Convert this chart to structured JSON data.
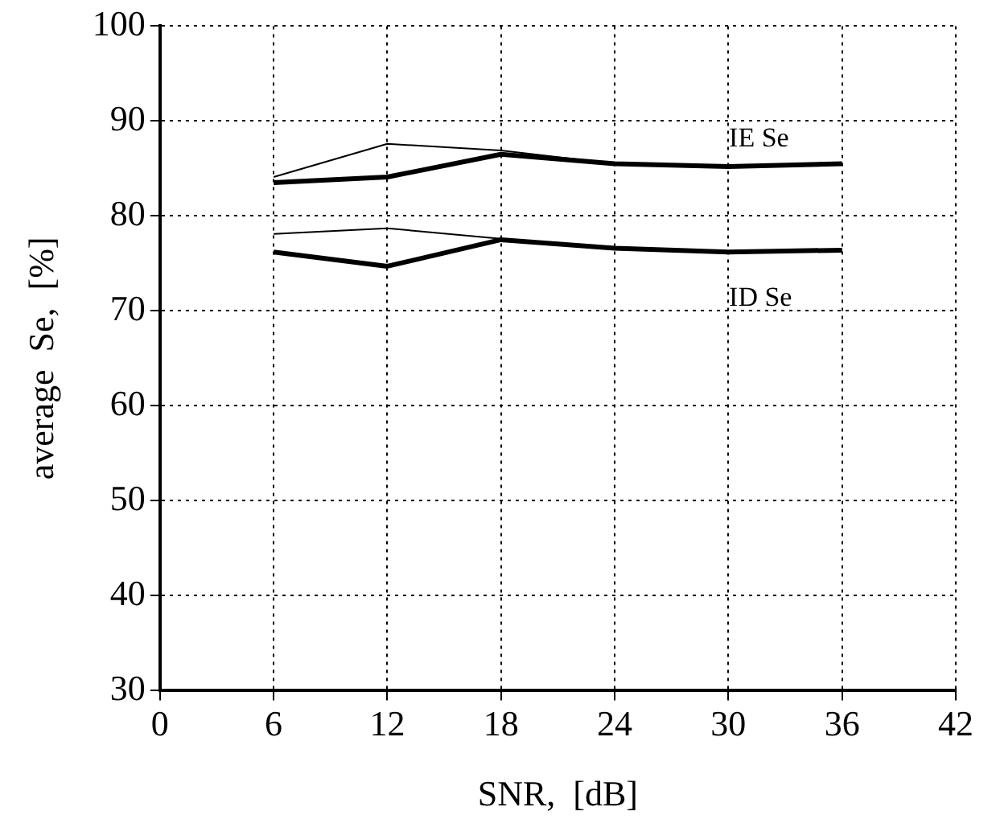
{
  "chart_data": {
    "type": "line",
    "xlabel": "SNR,  [dB]",
    "ylabel": "average  Se,  [%]",
    "x": [
      6,
      12,
      18,
      24,
      30,
      36
    ],
    "series": [
      {
        "color": "#000000",
        "values": [
          84.1,
          87.6,
          86.9,
          85.5,
          85.2,
          85.5
        ]
      },
      {
        "color": "#000000",
        "values": [
          83.5,
          84.1,
          86.5,
          85.5,
          85.2,
          85.5
        ]
      },
      {
        "color": "#000000",
        "values": [
          78.1,
          78.7,
          77.6,
          76.6,
          76.2,
          76.4
        ]
      },
      {
        "color": "#000000",
        "values": [
          76.2,
          74.7,
          77.5,
          76.6,
          76.2,
          76.4
        ]
      }
    ],
    "xlim": [
      0,
      42
    ],
    "xticks": [
      0,
      6,
      12,
      18,
      24,
      30,
      36,
      42
    ],
    "ylim": [
      30,
      100
    ],
    "yticks": [
      30,
      40,
      50,
      60,
      70,
      80,
      90,
      100
    ],
    "grid": true,
    "legend": false,
    "marker": "none",
    "line_style": "solid",
    "annotations": [
      "IE Se",
      "ID Se"
    ]
  }
}
